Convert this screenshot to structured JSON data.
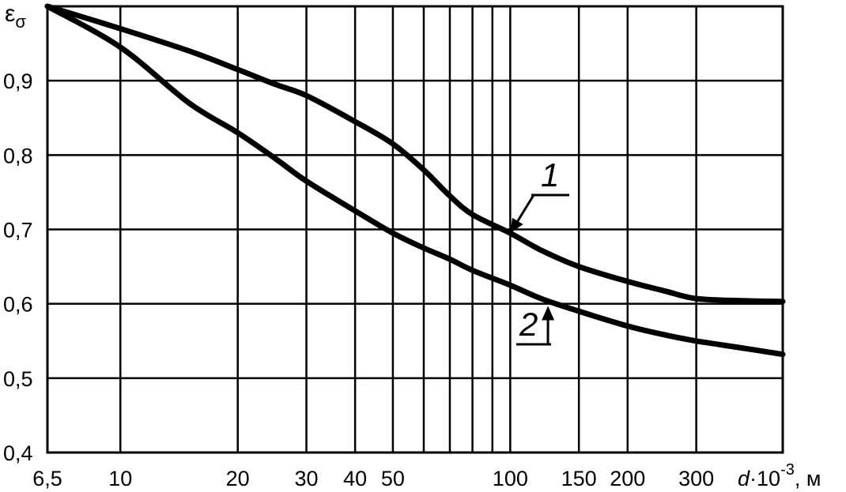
{
  "chart_data": {
    "type": "line",
    "title": "",
    "ylabel": "ε",
    "ylabel_sub": "σ",
    "xlabel_var": "d",
    "xlabel_rest": "·10",
    "xlabel_exp": "-3",
    "xlabel_unit": ", м",
    "x_scale": "log",
    "xlim": [
      6.5,
      500
    ],
    "ylim": [
      0.4,
      1.0
    ],
    "grid": true,
    "x_tick_labels": [
      {
        "value": 6.5,
        "label": "6,5"
      },
      {
        "value": 10,
        "label": "10"
      },
      {
        "value": 20,
        "label": "20"
      },
      {
        "value": 30,
        "label": "30"
      },
      {
        "value": 40,
        "label": "40"
      },
      {
        "value": 50,
        "label": "50"
      },
      {
        "value": 100,
        "label": "100"
      },
      {
        "value": 150,
        "label": "150"
      },
      {
        "value": 200,
        "label": "200"
      },
      {
        "value": 300,
        "label": "300"
      }
    ],
    "y_tick_labels": [
      {
        "value": 0.4,
        "label": "0,4"
      },
      {
        "value": 0.5,
        "label": "0,5"
      },
      {
        "value": 0.6,
        "label": "0,6"
      },
      {
        "value": 0.7,
        "label": "0,7"
      },
      {
        "value": 0.8,
        "label": "0,8"
      },
      {
        "value": 0.9,
        "label": "0,9"
      }
    ],
    "x_gridlines": [
      10,
      20,
      30,
      40,
      50,
      60,
      70,
      80,
      90,
      100,
      150,
      200,
      300
    ],
    "y_gridlines": [
      0.5,
      0.6,
      0.7,
      0.8,
      0.9
    ],
    "series": [
      {
        "name": "1",
        "x": [
          6.5,
          10,
          15,
          20,
          25,
          30,
          40,
          50,
          60,
          70,
          80,
          100,
          120,
          150,
          200,
          250,
          300,
          400,
          500
        ],
        "y": [
          1.0,
          0.97,
          0.94,
          0.915,
          0.895,
          0.88,
          0.845,
          0.815,
          0.78,
          0.745,
          0.72,
          0.695,
          0.672,
          0.65,
          0.63,
          0.617,
          0.607,
          0.604,
          0.603
        ]
      },
      {
        "name": "2",
        "x": [
          6.5,
          10,
          15,
          20,
          25,
          30,
          40,
          50,
          60,
          70,
          80,
          100,
          120,
          150,
          200,
          250,
          300,
          400,
          500
        ],
        "y": [
          1.0,
          0.945,
          0.87,
          0.83,
          0.795,
          0.765,
          0.725,
          0.695,
          0.675,
          0.66,
          0.645,
          0.625,
          0.607,
          0.59,
          0.57,
          0.558,
          0.55,
          0.54,
          0.532
        ]
      }
    ],
    "annotations": [
      {
        "text": "1",
        "series": "1",
        "x": 100,
        "y": 0.695
      },
      {
        "text": "2",
        "series": "2",
        "x": 125,
        "y": 0.597
      }
    ]
  }
}
